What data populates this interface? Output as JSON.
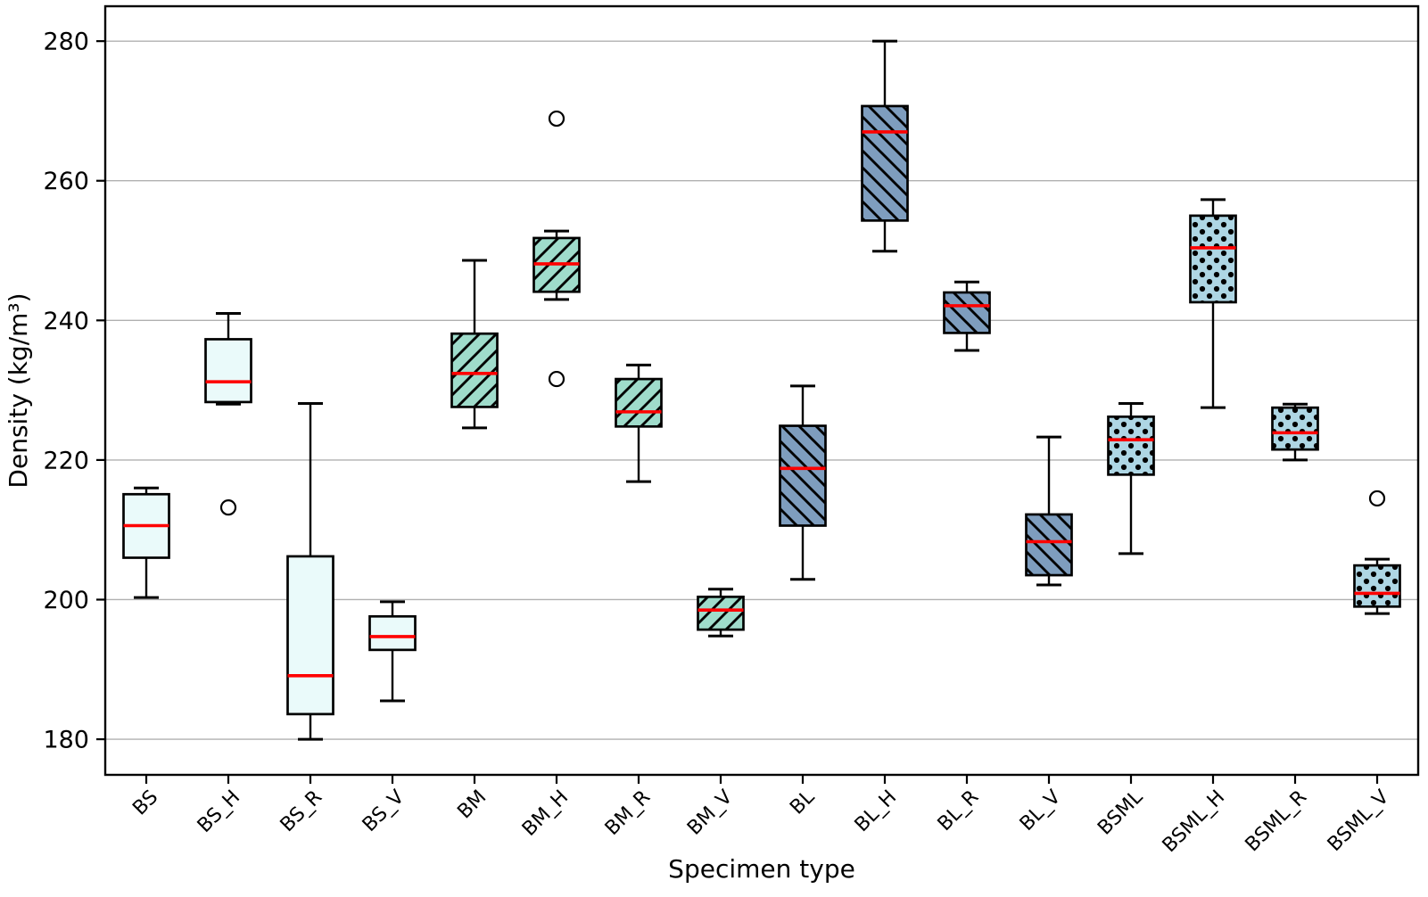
{
  "chart_data": {
    "type": "boxplot",
    "title": "",
    "xlabel": "Specimen type",
    "ylabel": "Density (kg/m³)",
    "ylim": [
      174.9,
      285.0
    ],
    "yticks": [
      180,
      200,
      220,
      240,
      260,
      280
    ],
    "grid": "horizontal-gridlines-on",
    "legend": "none",
    "colors": {
      "median": "#ff0000",
      "box_edge": "#000000",
      "whisker": "#000000",
      "gridline": "#b0b0b0",
      "frame": "#000000",
      "background": "#ffffff"
    },
    "groups": [
      {
        "label": "BS",
        "fill": "#eafafa",
        "hatch": "none",
        "whisker_low": 200.3,
        "q1": 206.0,
        "median": 210.6,
        "q3": 215.1,
        "whisker_high": 216.0,
        "outliers": []
      },
      {
        "label": "BS_H",
        "fill": "#eafafa",
        "hatch": "none",
        "whisker_low": 228.0,
        "q1": 228.3,
        "median": 231.2,
        "q3": 237.3,
        "whisker_high": 241.0,
        "outliers": [
          213.2
        ]
      },
      {
        "label": "BS_R",
        "fill": "#eafafa",
        "hatch": "none",
        "whisker_low": 180.0,
        "q1": 183.6,
        "median": 189.1,
        "q3": 206.2,
        "whisker_high": 228.1,
        "outliers": []
      },
      {
        "label": "BS_V",
        "fill": "#eafafa",
        "hatch": "none",
        "whisker_low": 185.5,
        "q1": 192.8,
        "median": 194.7,
        "q3": 197.6,
        "whisker_high": 199.7,
        "outliers": []
      },
      {
        "label": "BM",
        "fill": "#9fdccb",
        "hatch": "/",
        "whisker_low": 224.6,
        "q1": 227.6,
        "median": 232.4,
        "q3": 238.1,
        "whisker_high": 248.6,
        "outliers": []
      },
      {
        "label": "BM_H",
        "fill": "#9fdccb",
        "hatch": "/",
        "whisker_low": 243.0,
        "q1": 244.1,
        "median": 248.1,
        "q3": 251.8,
        "whisker_high": 252.8,
        "outliers": [
          268.9,
          231.6
        ]
      },
      {
        "label": "BM_R",
        "fill": "#9fdccb",
        "hatch": "/",
        "whisker_low": 216.9,
        "q1": 224.8,
        "median": 226.9,
        "q3": 231.6,
        "whisker_high": 233.6,
        "outliers": []
      },
      {
        "label": "BM_V",
        "fill": "#9fdccb",
        "hatch": "/",
        "whisker_low": 194.8,
        "q1": 195.7,
        "median": 198.5,
        "q3": 200.4,
        "whisker_high": 201.5,
        "outliers": []
      },
      {
        "label": "BL",
        "fill": "#7e9dbe",
        "hatch": "\\",
        "whisker_low": 202.9,
        "q1": 210.6,
        "median": 218.8,
        "q3": 224.9,
        "whisker_high": 230.6,
        "outliers": []
      },
      {
        "label": "BL_H",
        "fill": "#7e9dbe",
        "hatch": "\\",
        "whisker_low": 249.9,
        "q1": 254.3,
        "median": 267.0,
        "q3": 270.7,
        "whisker_high": 280.0,
        "outliers": []
      },
      {
        "label": "BL_R",
        "fill": "#7e9dbe",
        "hatch": "\\",
        "whisker_low": 235.7,
        "q1": 238.2,
        "median": 242.1,
        "q3": 244.0,
        "whisker_high": 245.5,
        "outliers": []
      },
      {
        "label": "BL_V",
        "fill": "#7e9dbe",
        "hatch": "\\",
        "whisker_low": 202.1,
        "q1": 203.5,
        "median": 208.3,
        "q3": 212.2,
        "whisker_high": 223.3,
        "outliers": []
      },
      {
        "label": "BSML",
        "fill": "#aed6e4",
        "hatch": ".",
        "whisker_low": 206.6,
        "q1": 217.9,
        "median": 222.9,
        "q3": 226.2,
        "whisker_high": 228.1,
        "outliers": []
      },
      {
        "label": "BSML_H",
        "fill": "#aed6e4",
        "hatch": ".",
        "whisker_low": 227.5,
        "q1": 242.6,
        "median": 250.4,
        "q3": 255.0,
        "whisker_high": 257.3,
        "outliers": []
      },
      {
        "label": "BSML_R",
        "fill": "#aed6e4",
        "hatch": ".",
        "whisker_low": 220.0,
        "q1": 221.5,
        "median": 223.9,
        "q3": 227.5,
        "whisker_high": 228.0,
        "outliers": []
      },
      {
        "label": "BSML_V",
        "fill": "#aed6e4",
        "hatch": ".",
        "whisker_low": 198.0,
        "q1": 199.0,
        "median": 200.9,
        "q3": 204.9,
        "whisker_high": 205.8,
        "outliers": [
          214.5
        ]
      }
    ]
  }
}
